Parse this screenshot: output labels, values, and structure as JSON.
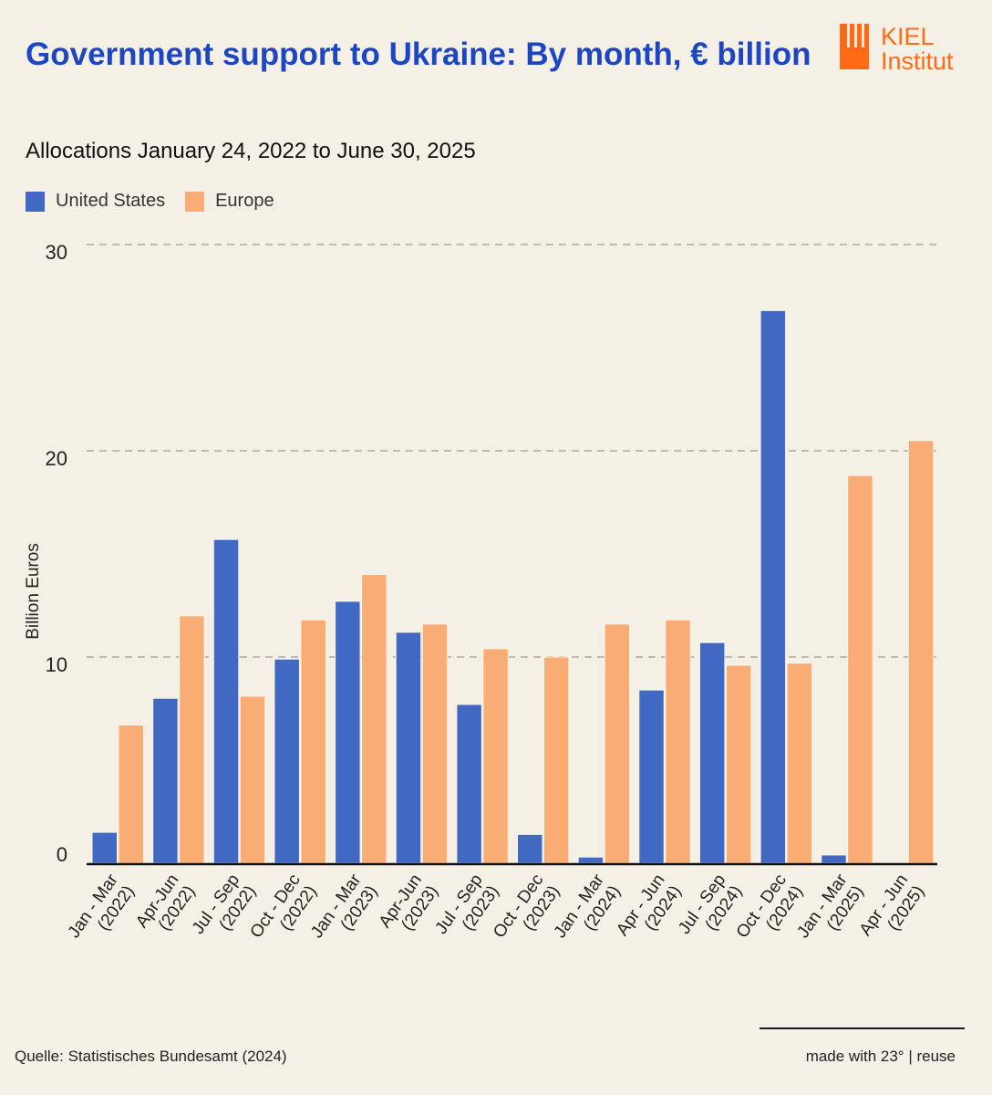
{
  "header": {
    "title": "Government support to Ukraine: By month, € billion",
    "subtitle": "Allocations January 24, 2022 to June 30, 2025",
    "logo_line1": "KIEL",
    "logo_line2": "Institut"
  },
  "colors": {
    "title": "#1d46c2",
    "united_states": "#4169c4",
    "europe": "#f9ad74",
    "logo": "#ff6a13",
    "background": "#f5f0e6"
  },
  "legend": [
    {
      "label": "United States",
      "color": "#4169c4"
    },
    {
      "label": "Europe",
      "color": "#f9ad74"
    }
  ],
  "footer": {
    "source": "Quelle: Statistisches Bundesamt (2024)",
    "credit": "made with 23° | reuse"
  },
  "chart_data": {
    "type": "bar",
    "title": "Government support to Ukraine: By month, € billion",
    "subtitle": "Allocations January 24, 2022 to June 30, 2025",
    "xlabel": "",
    "ylabel": "Billion Euros",
    "ylim": [
      0,
      30
    ],
    "yticks": [
      0,
      10,
      20,
      30
    ],
    "grid": true,
    "legend_position": "top-left",
    "categories": [
      [
        "Jan - Mar",
        "(2022)"
      ],
      [
        "Apr-Jun",
        "(2022)"
      ],
      [
        "Jul - Sep",
        "(2022)"
      ],
      [
        "Oct - Dec",
        "(2022)"
      ],
      [
        "Jan - Mar",
        "(2023)"
      ],
      [
        "Apr-Jun",
        "(2023)"
      ],
      [
        "Jul - Sep",
        "(2023)"
      ],
      [
        "Oct - Dec",
        "(2023)"
      ],
      [
        "Jan - Mar",
        "(2024)"
      ],
      [
        "Apr - Jun",
        "(2024)"
      ],
      [
        "Jul - Sep",
        "(2024)"
      ],
      [
        "Oct - Dec",
        "(2024)"
      ],
      [
        "Jan - Mar",
        "(2025)"
      ],
      [
        "Apr - Jun",
        "(2025)"
      ]
    ],
    "series": [
      {
        "name": "United States",
        "color": "#4169c4",
        "values": [
          1.5,
          8.0,
          15.7,
          9.9,
          12.7,
          11.2,
          7.7,
          1.4,
          0.3,
          8.4,
          10.7,
          26.8,
          0.4,
          0
        ]
      },
      {
        "name": "Europe",
        "color": "#f9ad74",
        "values": [
          6.7,
          12.0,
          8.1,
          11.8,
          14.0,
          11.6,
          10.4,
          10.0,
          11.6,
          11.8,
          9.6,
          9.7,
          18.8,
          20.5
        ]
      }
    ]
  }
}
